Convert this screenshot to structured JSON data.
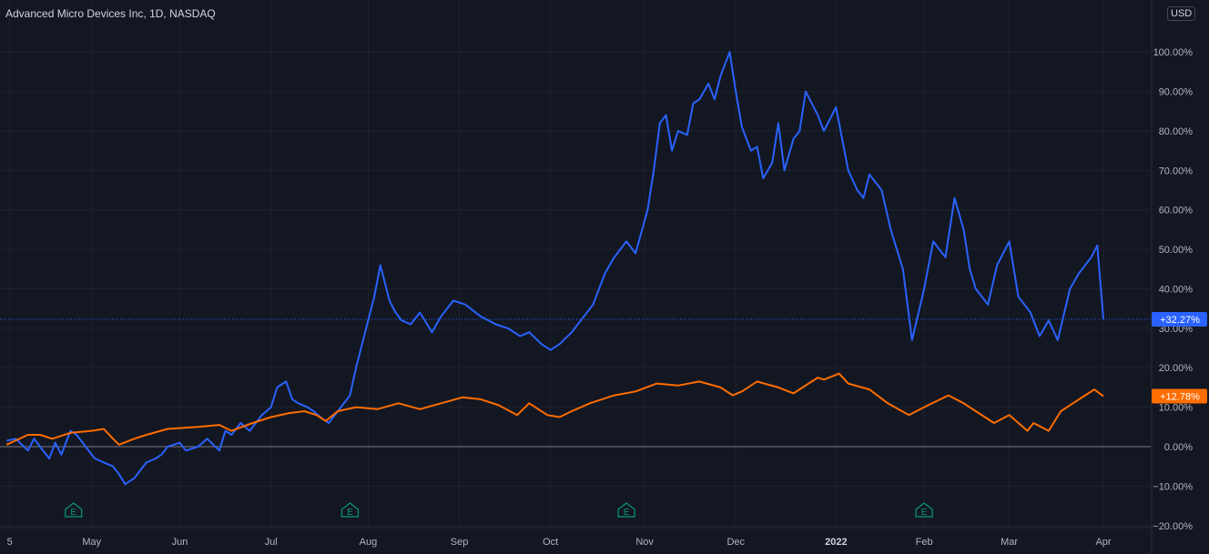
{
  "header": {
    "symbol_title": "Advanced Micro Devices Inc, 1D, NASDAQ",
    "currency_label": "USD"
  },
  "colors": {
    "background": "#131722",
    "grid": "#1e222d",
    "text": "#b2b5be",
    "series_amd": "#2962ff",
    "series_index": "#ff6d00",
    "earnings_badge": "#089981",
    "zero_line": "#787b86"
  },
  "chart_data": {
    "type": "line",
    "title": "Advanced Micro Devices Inc, 1D, NASDAQ",
    "xlabel": "",
    "ylabel": "",
    "ylim": [
      -20,
      110
    ],
    "y_axis_format": "percent",
    "y_ticks": [
      "−20.00%",
      "−10.00%",
      "0.00%",
      "10.00%",
      "20.00%",
      "30.00%",
      "40.00%",
      "50.00%",
      "60.00%",
      "70.00%",
      "80.00%",
      "90.00%",
      "100.00%"
    ],
    "x_ticks": [
      {
        "label": "5",
        "date": "2021-04-06"
      },
      {
        "label": "May",
        "date": "2021-05-03"
      },
      {
        "label": "Jun",
        "date": "2021-06-01"
      },
      {
        "label": "Jul",
        "date": "2021-07-01"
      },
      {
        "label": "Aug",
        "date": "2021-08-02"
      },
      {
        "label": "Sep",
        "date": "2021-09-01"
      },
      {
        "label": "Oct",
        "date": "2021-10-01"
      },
      {
        "label": "Nov",
        "date": "2021-11-01"
      },
      {
        "label": "Dec",
        "date": "2021-12-01"
      },
      {
        "label": "2022",
        "date": "2022-01-03",
        "bold": true
      },
      {
        "label": "Feb",
        "date": "2022-02-01"
      },
      {
        "label": "Mar",
        "date": "2022-03-01"
      },
      {
        "label": "Apr",
        "date": "2022-04-01"
      }
    ],
    "earnings_markers": [
      {
        "label": "E",
        "date": "2021-04-27"
      },
      {
        "label": "E",
        "date": "2021-07-27"
      },
      {
        "label": "E",
        "date": "2021-10-26"
      },
      {
        "label": "E",
        "date": "2022-02-01"
      }
    ],
    "grid": true,
    "legend": "none",
    "series": [
      {
        "color_key": "series_amd",
        "last_value_label": "+32.27%",
        "points": [
          [
            "2021-04-05",
            1.5
          ],
          [
            "2021-04-08",
            2
          ],
          [
            "2021-04-12",
            -1
          ],
          [
            "2021-04-14",
            2
          ],
          [
            "2021-04-16",
            0
          ],
          [
            "2021-04-19",
            -3
          ],
          [
            "2021-04-21",
            1
          ],
          [
            "2021-04-23",
            -2
          ],
          [
            "2021-04-26",
            4
          ],
          [
            "2021-04-28",
            3
          ],
          [
            "2021-05-01",
            0
          ],
          [
            "2021-05-04",
            -3
          ],
          [
            "2021-05-07",
            -4
          ],
          [
            "2021-05-10",
            -5
          ],
          [
            "2021-05-12",
            -7
          ],
          [
            "2021-05-14",
            -9.5
          ],
          [
            "2021-05-17",
            -8
          ],
          [
            "2021-05-19",
            -6
          ],
          [
            "2021-05-21",
            -4
          ],
          [
            "2021-05-24",
            -3
          ],
          [
            "2021-05-26",
            -2
          ],
          [
            "2021-05-28",
            0
          ],
          [
            "2021-06-01",
            1
          ],
          [
            "2021-06-03",
            -1
          ],
          [
            "2021-06-07",
            0
          ],
          [
            "2021-06-10",
            2
          ],
          [
            "2021-06-14",
            -1
          ],
          [
            "2021-06-16",
            4
          ],
          [
            "2021-06-18",
            3
          ],
          [
            "2021-06-21",
            6
          ],
          [
            "2021-06-24",
            4
          ],
          [
            "2021-06-28",
            8
          ],
          [
            "2021-07-01",
            10
          ],
          [
            "2021-07-03",
            15
          ],
          [
            "2021-07-06",
            16.5
          ],
          [
            "2021-07-08",
            12
          ],
          [
            "2021-07-10",
            11
          ],
          [
            "2021-07-13",
            10
          ],
          [
            "2021-07-15",
            9
          ],
          [
            "2021-07-18",
            7
          ],
          [
            "2021-07-20",
            6
          ],
          [
            "2021-07-23",
            9
          ],
          [
            "2021-07-27",
            13
          ],
          [
            "2021-07-29",
            20
          ],
          [
            "2021-08-02",
            32
          ],
          [
            "2021-08-04",
            38
          ],
          [
            "2021-08-06",
            46
          ],
          [
            "2021-08-09",
            37
          ],
          [
            "2021-08-11",
            34
          ],
          [
            "2021-08-13",
            32
          ],
          [
            "2021-08-16",
            31
          ],
          [
            "2021-08-19",
            34
          ],
          [
            "2021-08-23",
            29
          ],
          [
            "2021-08-26",
            33
          ],
          [
            "2021-08-30",
            37
          ],
          [
            "2021-09-03",
            36
          ],
          [
            "2021-09-08",
            33
          ],
          [
            "2021-09-13",
            31
          ],
          [
            "2021-09-17",
            30
          ],
          [
            "2021-09-21",
            28
          ],
          [
            "2021-09-24",
            29
          ],
          [
            "2021-09-28",
            26
          ],
          [
            "2021-10-01",
            24.5
          ],
          [
            "2021-10-04",
            26
          ],
          [
            "2021-10-08",
            29
          ],
          [
            "2021-10-12",
            33
          ],
          [
            "2021-10-15",
            36
          ],
          [
            "2021-10-19",
            44
          ],
          [
            "2021-10-22",
            48
          ],
          [
            "2021-10-26",
            52
          ],
          [
            "2021-10-29",
            49
          ],
          [
            "2021-11-02",
            60
          ],
          [
            "2021-11-04",
            70
          ],
          [
            "2021-11-06",
            82
          ],
          [
            "2021-11-08",
            84
          ],
          [
            "2021-11-10",
            75
          ],
          [
            "2021-11-12",
            80
          ],
          [
            "2021-11-15",
            79
          ],
          [
            "2021-11-17",
            87
          ],
          [
            "2021-11-19",
            88
          ],
          [
            "2021-11-22",
            92
          ],
          [
            "2021-11-24",
            88
          ],
          [
            "2021-11-26",
            94
          ],
          [
            "2021-11-29",
            100
          ],
          [
            "2021-12-01",
            90
          ],
          [
            "2021-12-03",
            81
          ],
          [
            "2021-12-06",
            75
          ],
          [
            "2021-12-08",
            76
          ],
          [
            "2021-12-10",
            68
          ],
          [
            "2021-12-13",
            72
          ],
          [
            "2021-12-15",
            82
          ],
          [
            "2021-12-17",
            70
          ],
          [
            "2021-12-20",
            78
          ],
          [
            "2021-12-22",
            80
          ],
          [
            "2021-12-24",
            90
          ],
          [
            "2021-12-28",
            84
          ],
          [
            "2021-12-30",
            80
          ],
          [
            "2022-01-03",
            86
          ],
          [
            "2022-01-05",
            78
          ],
          [
            "2022-01-07",
            70
          ],
          [
            "2022-01-10",
            65
          ],
          [
            "2022-01-12",
            63
          ],
          [
            "2022-01-14",
            69
          ],
          [
            "2022-01-18",
            65
          ],
          [
            "2022-01-21",
            55
          ],
          [
            "2022-01-25",
            45
          ],
          [
            "2022-01-28",
            27
          ],
          [
            "2022-02-01",
            40
          ],
          [
            "2022-02-04",
            52
          ],
          [
            "2022-02-08",
            48
          ],
          [
            "2022-02-11",
            63
          ],
          [
            "2022-02-14",
            55
          ],
          [
            "2022-02-16",
            45
          ],
          [
            "2022-02-18",
            40
          ],
          [
            "2022-02-22",
            36
          ],
          [
            "2022-02-25",
            46
          ],
          [
            "2022-03-01",
            52
          ],
          [
            "2022-03-04",
            38
          ],
          [
            "2022-03-08",
            34
          ],
          [
            "2022-03-11",
            28
          ],
          [
            "2022-03-14",
            32
          ],
          [
            "2022-03-17",
            27
          ],
          [
            "2022-03-21",
            40
          ],
          [
            "2022-03-24",
            44
          ],
          [
            "2022-03-28",
            48
          ],
          [
            "2022-03-30",
            51
          ],
          [
            "2022-04-01",
            32.27
          ]
        ]
      },
      {
        "color_key": "series_index",
        "last_value_label": "+12.78%",
        "points": [
          [
            "2021-04-05",
            0.5
          ],
          [
            "2021-04-12",
            3
          ],
          [
            "2021-04-16",
            3
          ],
          [
            "2021-04-20",
            2
          ],
          [
            "2021-04-26",
            3.5
          ],
          [
            "2021-05-03",
            4
          ],
          [
            "2021-05-07",
            4.5
          ],
          [
            "2021-05-10",
            2
          ],
          [
            "2021-05-12",
            0.5
          ],
          [
            "2021-05-17",
            2
          ],
          [
            "2021-05-21",
            3
          ],
          [
            "2021-05-28",
            4.5
          ],
          [
            "2021-06-07",
            5
          ],
          [
            "2021-06-14",
            5.5
          ],
          [
            "2021-06-18",
            4
          ],
          [
            "2021-06-25",
            6
          ],
          [
            "2021-07-01",
            7.5
          ],
          [
            "2021-07-07",
            8.5
          ],
          [
            "2021-07-12",
            9
          ],
          [
            "2021-07-16",
            8
          ],
          [
            "2021-07-19",
            6.5
          ],
          [
            "2021-07-23",
            9
          ],
          [
            "2021-07-29",
            10
          ],
          [
            "2021-08-05",
            9.5
          ],
          [
            "2021-08-12",
            11
          ],
          [
            "2021-08-19",
            9.5
          ],
          [
            "2021-08-26",
            11
          ],
          [
            "2021-09-02",
            12.5
          ],
          [
            "2021-09-08",
            12
          ],
          [
            "2021-09-14",
            10.5
          ],
          [
            "2021-09-20",
            8
          ],
          [
            "2021-09-24",
            11
          ],
          [
            "2021-09-30",
            8
          ],
          [
            "2021-10-04",
            7.5
          ],
          [
            "2021-10-08",
            9
          ],
          [
            "2021-10-14",
            11
          ],
          [
            "2021-10-22",
            13
          ],
          [
            "2021-10-29",
            14
          ],
          [
            "2021-11-05",
            16
          ],
          [
            "2021-11-12",
            15.5
          ],
          [
            "2021-11-19",
            16.5
          ],
          [
            "2021-11-26",
            15
          ],
          [
            "2021-11-30",
            13
          ],
          [
            "2021-12-03",
            14
          ],
          [
            "2021-12-08",
            16.5
          ],
          [
            "2021-12-15",
            15
          ],
          [
            "2021-12-20",
            13.5
          ],
          [
            "2021-12-28",
            17.5
          ],
          [
            "2021-12-30",
            17
          ],
          [
            "2022-01-04",
            18.5
          ],
          [
            "2022-01-07",
            16
          ],
          [
            "2022-01-14",
            14.5
          ],
          [
            "2022-01-20",
            11
          ],
          [
            "2022-01-27",
            8
          ],
          [
            "2022-02-01",
            10
          ],
          [
            "2022-02-09",
            13
          ],
          [
            "2022-02-14",
            11
          ],
          [
            "2022-02-18",
            9
          ],
          [
            "2022-02-24",
            6
          ],
          [
            "2022-03-01",
            8
          ],
          [
            "2022-03-07",
            4
          ],
          [
            "2022-03-09",
            6
          ],
          [
            "2022-03-14",
            4
          ],
          [
            "2022-03-18",
            9
          ],
          [
            "2022-03-22",
            11
          ],
          [
            "2022-03-29",
            14.5
          ],
          [
            "2022-04-01",
            12.78
          ]
        ]
      }
    ]
  }
}
